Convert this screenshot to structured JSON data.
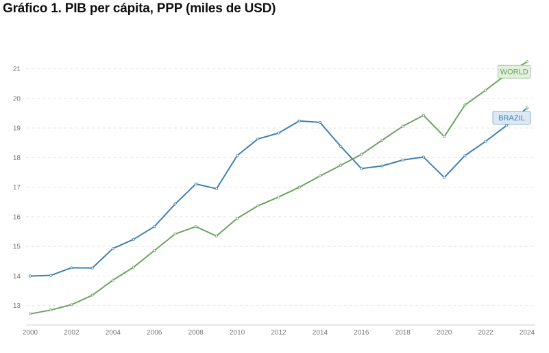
{
  "title": "Gráfico 1. PIB per cápita, PPP (miles de USD)",
  "chart_data": {
    "type": "line",
    "title": "Gráfico 1. PIB per cápita, PPP (miles de USD)",
    "xlabel": "",
    "ylabel": "",
    "x": [
      2000,
      2001,
      2002,
      2003,
      2004,
      2005,
      2006,
      2007,
      2008,
      2009,
      2010,
      2011,
      2012,
      2013,
      2014,
      2015,
      2016,
      2017,
      2018,
      2019,
      2020,
      2021,
      2022,
      2023,
      2024
    ],
    "xlim": [
      2000,
      2024
    ],
    "ylim": [
      12.6,
      21.5
    ],
    "x_ticks": [
      "2000",
      "2002",
      "2004",
      "2006",
      "2008",
      "2010",
      "2012",
      "2014",
      "2016",
      "2018",
      "2020",
      "2022",
      "2024"
    ],
    "y_ticks": [
      "13",
      "14",
      "15",
      "16",
      "17",
      "18",
      "19",
      "20",
      "21"
    ],
    "grid": "horizontal dashed",
    "series": [
      {
        "name": "BRAZIL",
        "color": "#3f7fb0",
        "label_bg": "#dce9f4",
        "values": [
          14.0,
          14.02,
          14.28,
          14.27,
          14.93,
          15.24,
          15.67,
          16.43,
          17.11,
          16.95,
          18.07,
          18.63,
          18.83,
          19.24,
          19.19,
          18.38,
          17.63,
          17.72,
          17.92,
          18.02,
          17.33,
          18.07,
          18.55,
          19.08,
          19.68
        ]
      },
      {
        "name": "WORLD",
        "color": "#6aa35e",
        "label_bg": "#e3f0dd",
        "values": [
          12.72,
          12.85,
          13.03,
          13.35,
          13.86,
          14.3,
          14.86,
          15.42,
          15.67,
          15.35,
          15.95,
          16.37,
          16.67,
          17.0,
          17.38,
          17.74,
          18.11,
          18.59,
          19.06,
          19.43,
          18.71,
          19.78,
          20.28,
          20.81,
          21.24
        ]
      }
    ]
  }
}
